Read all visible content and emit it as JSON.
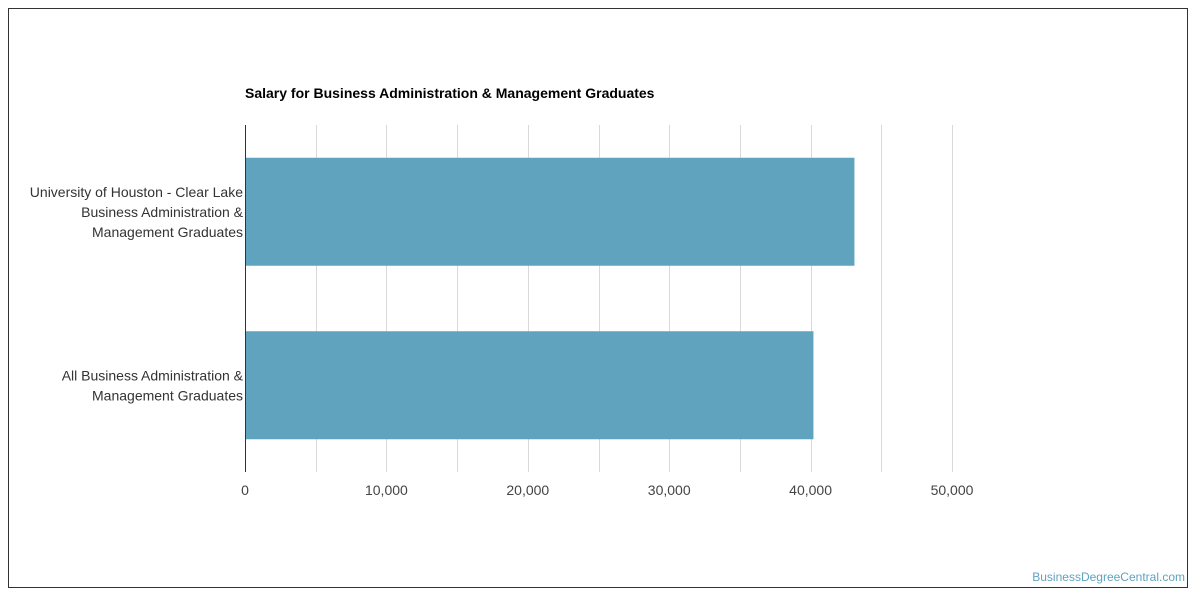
{
  "chart_data": {
    "type": "bar",
    "orientation": "horizontal",
    "title": "Salary for Business Administration & Management Graduates",
    "categories": [
      [
        "University of Houston - Clear Lake",
        "Business Administration &",
        "Management Graduates"
      ],
      [
        "All Business Administration &",
        "Management Graduates"
      ]
    ],
    "values": [
      43100,
      40200
    ],
    "xlim": [
      0,
      50000
    ],
    "xticks": [
      0,
      10000,
      20000,
      30000,
      40000,
      50000
    ],
    "xtick_labels": [
      "0",
      "10,000",
      "20,000",
      "30,000",
      "40,000",
      "50,000"
    ],
    "xlabel": "",
    "ylabel": "",
    "grid": true,
    "legend": "none",
    "bar_color": "#5fa3bf"
  },
  "watermark": "BusinessDegreeCentral.com"
}
